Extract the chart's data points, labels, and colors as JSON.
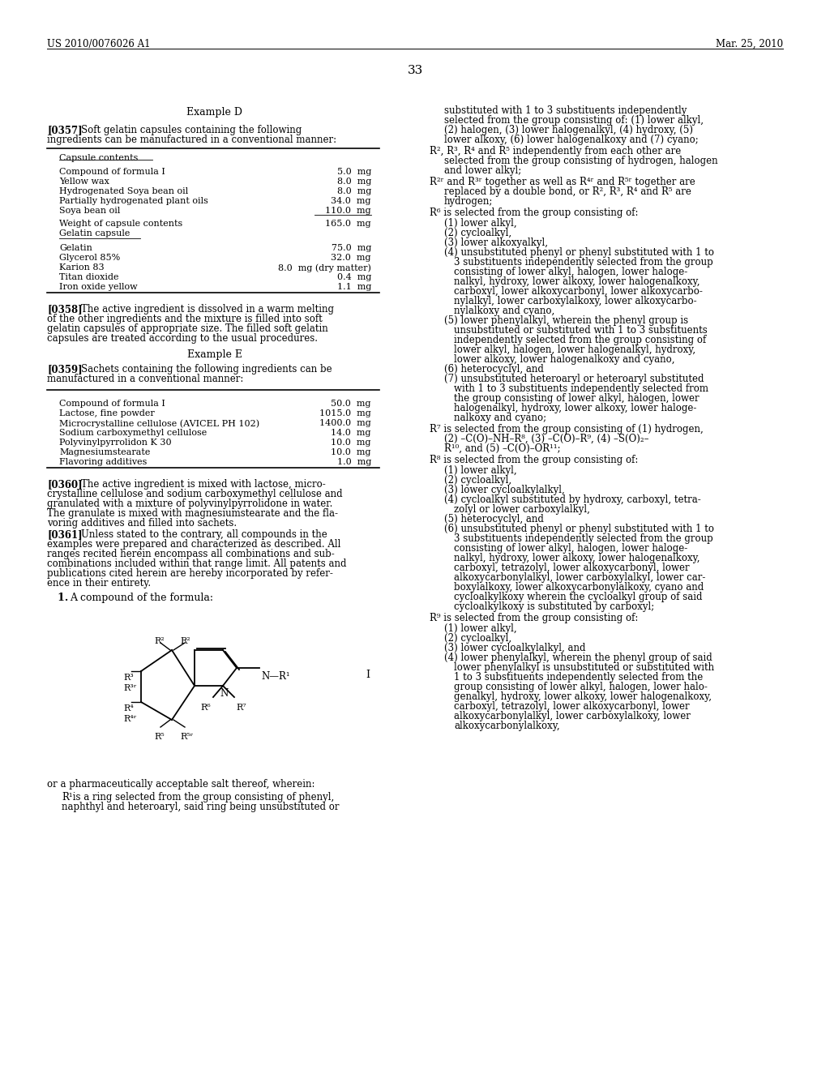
{
  "background_color": "#ffffff",
  "page_number": "33",
  "header_left": "US 2010/0076026 A1",
  "header_right": "Mar. 25, 2010"
}
